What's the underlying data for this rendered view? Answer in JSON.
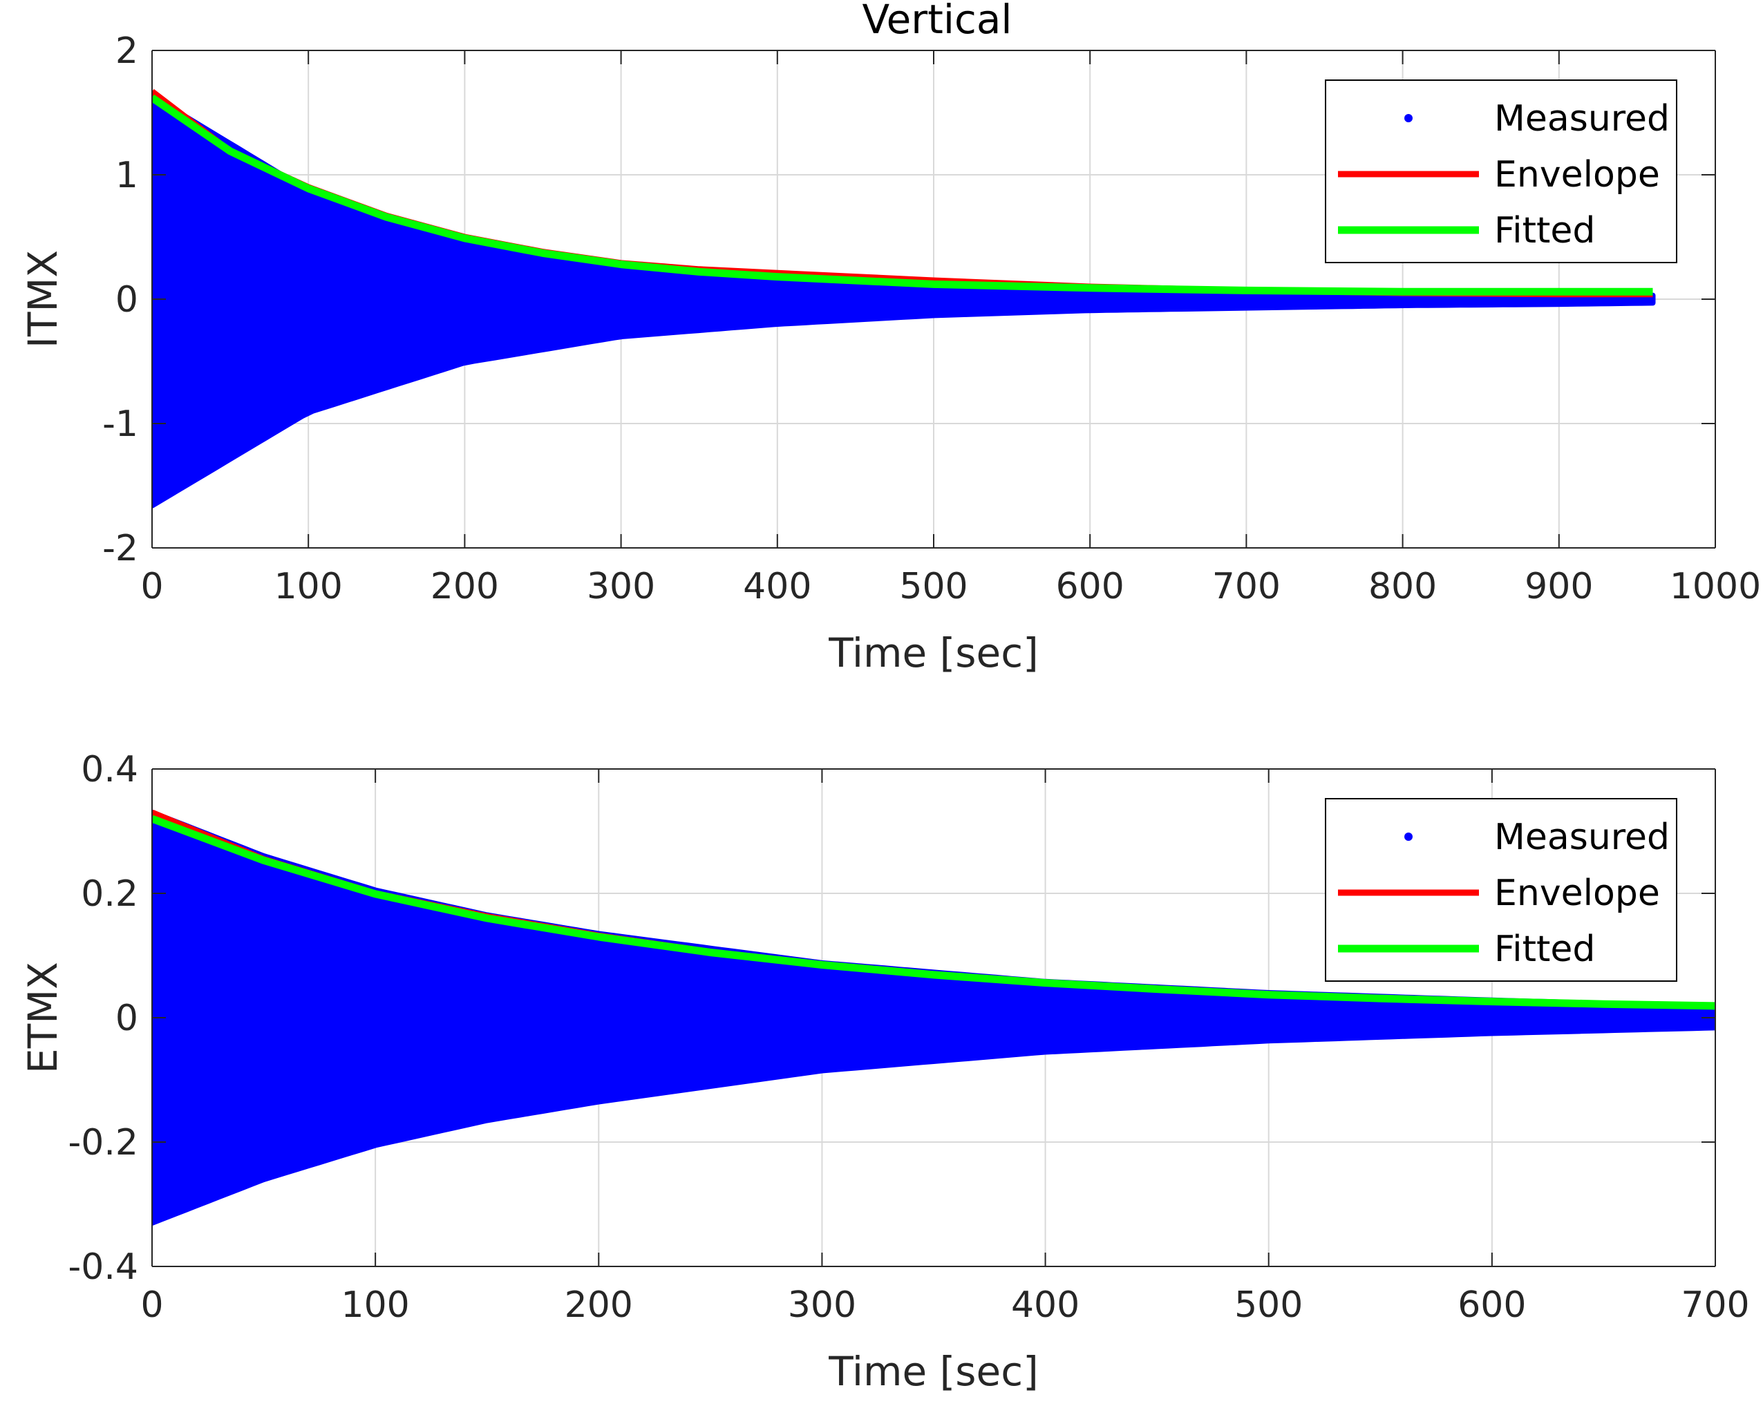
{
  "figure_title": "Vertical",
  "colors": {
    "measured": "#0000ff",
    "envelope": "#ff0000",
    "fitted": "#00ff00",
    "grid": "#d9d9d9",
    "axis": "#262626"
  },
  "chart_data": [
    {
      "type": "line",
      "title": "Vertical",
      "xlabel": "Time [sec]",
      "ylabel": "ITMX",
      "xlim": [
        0,
        1000
      ],
      "ylim": [
        -2,
        2
      ],
      "xticks": [
        "0",
        "100",
        "200",
        "300",
        "400",
        "500",
        "600",
        "700",
        "800",
        "900",
        "1000"
      ],
      "yticks": [
        "-2",
        "-1",
        "0",
        "1",
        "2"
      ],
      "grid": true,
      "legend_position": "top-right",
      "legend": [
        "Measured",
        "Envelope",
        "Fitted"
      ],
      "series": [
        {
          "name": "Measured",
          "style": "points",
          "x_range": [
            0,
            960
          ],
          "envelope": {
            "x": [
              0,
              100,
              200,
              300,
              400,
              500,
              600,
              700,
              800,
              900,
              960
            ],
            "upper": [
              1.63,
              0.87,
              0.47,
              0.27,
              0.18,
              0.12,
              0.09,
              0.06,
              0.05,
              0.04,
              0.03
            ],
            "lower": [
              -1.66,
              -0.91,
              -0.51,
              -0.3,
              -0.2,
              -0.13,
              -0.09,
              -0.07,
              -0.05,
              -0.04,
              -0.03
            ]
          }
        },
        {
          "name": "Envelope",
          "x": [
            0,
            50,
            100,
            150,
            200,
            250,
            300,
            350,
            400,
            450,
            500,
            600,
            700,
            800,
            900,
            960
          ],
          "values": [
            1.67,
            1.19,
            0.9,
            0.67,
            0.5,
            0.38,
            0.29,
            0.24,
            0.21,
            0.18,
            0.15,
            0.1,
            0.07,
            0.05,
            0.04,
            0.04
          ]
        },
        {
          "name": "Fitted",
          "x": [
            0,
            50,
            100,
            150,
            200,
            250,
            300,
            350,
            400,
            450,
            500,
            600,
            700,
            800,
            900,
            960
          ],
          "values": [
            1.62,
            1.19,
            0.89,
            0.66,
            0.49,
            0.37,
            0.28,
            0.22,
            0.18,
            0.15,
            0.12,
            0.09,
            0.07,
            0.06,
            0.06,
            0.06
          ]
        }
      ]
    },
    {
      "type": "line",
      "title": "",
      "xlabel": "Time [sec]",
      "ylabel": "ETMX",
      "xlim": [
        0,
        700
      ],
      "ylim": [
        -0.4,
        0.4
      ],
      "xticks": [
        "0",
        "100",
        "200",
        "300",
        "400",
        "500",
        "600",
        "700"
      ],
      "yticks": [
        "-0.4",
        "-0.2",
        "0",
        "0.2",
        "0.4"
      ],
      "grid": true,
      "legend_position": "top-right",
      "legend": [
        "Measured",
        "Envelope",
        "Fitted"
      ],
      "series": [
        {
          "name": "Measured",
          "style": "points",
          "x_range": [
            0,
            700
          ],
          "envelope": {
            "x": [
              0,
              50,
              100,
              150,
              200,
              300,
              400,
              500,
              600,
              700
            ],
            "upper": [
              0.33,
              0.26,
              0.205,
              0.165,
              0.135,
              0.088,
              0.058,
              0.04,
              0.028,
              0.018
            ],
            "lower": [
              -0.33,
              -0.26,
              -0.205,
              -0.165,
              -0.135,
              -0.085,
              -0.055,
              -0.037,
              -0.025,
              -0.016
            ]
          }
        },
        {
          "name": "Envelope",
          "x": [
            0,
            50,
            100,
            150,
            200,
            250,
            300,
            350,
            400,
            450,
            500,
            550,
            600,
            650,
            700
          ],
          "values": [
            0.33,
            0.255,
            0.2,
            0.163,
            0.132,
            0.106,
            0.086,
            0.07,
            0.057,
            0.047,
            0.038,
            0.031,
            0.026,
            0.022,
            0.019
          ]
        },
        {
          "name": "Fitted",
          "x": [
            0,
            50,
            100,
            150,
            200,
            250,
            300,
            350,
            400,
            450,
            500,
            550,
            600,
            650,
            700
          ],
          "values": [
            0.32,
            0.253,
            0.199,
            0.16,
            0.13,
            0.105,
            0.085,
            0.069,
            0.056,
            0.046,
            0.037,
            0.031,
            0.026,
            0.022,
            0.019
          ]
        }
      ]
    }
  ]
}
